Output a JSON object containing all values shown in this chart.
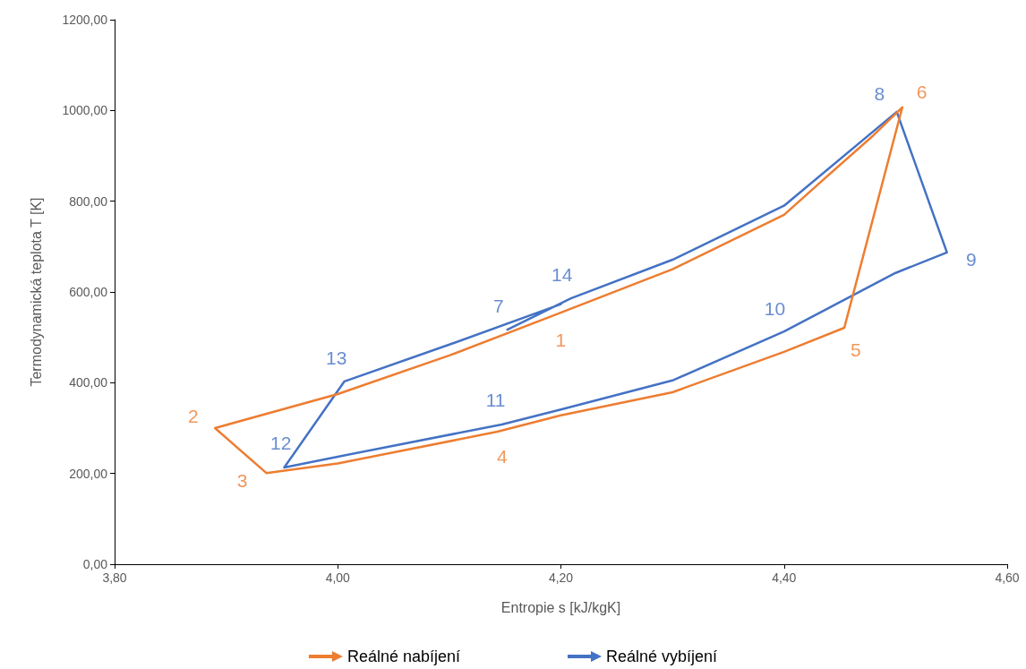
{
  "chart_data": {
    "type": "line",
    "xlabel": "Entropie s [kJ/kgK]",
    "ylabel": "Termodynamická teplota T [K]",
    "xlim": [
      3.8,
      4.6
    ],
    "xticks": [
      {
        "value": 3.8,
        "label": "3,80"
      },
      {
        "value": 4.0,
        "label": "4,00"
      },
      {
        "value": 4.2,
        "label": "4,20"
      },
      {
        "value": 4.4,
        "label": "4,40"
      },
      {
        "value": 4.6,
        "label": "4,60"
      }
    ],
    "ylim": [
      0,
      1200
    ],
    "yticks": [
      {
        "value": 0,
        "label": "0,00"
      },
      {
        "value": 200,
        "label": "200,00"
      },
      {
        "value": 400,
        "label": "400,00"
      },
      {
        "value": 600,
        "label": "600,00"
      },
      {
        "value": 800,
        "label": "800,00"
      },
      {
        "value": 1000,
        "label": "1000,00"
      },
      {
        "value": 1200,
        "label": "1200,00"
      }
    ],
    "grid": false,
    "legend": "bottom",
    "marker": "none",
    "line_style": "solid",
    "series": [
      {
        "name": "Reálné nabíjení",
        "color": "#ed7d31",
        "x": [
          4.45,
          4.4,
          4.3,
          4.19,
          4.1,
          4.0,
          3.89,
          3.936,
          4.0,
          4.143,
          4.2,
          4.3,
          4.4,
          4.454,
          4.506,
          4.48,
          4.43
        ],
        "values": [
          880,
          770,
          650,
          545,
          460,
          375,
          300,
          201,
          222,
          292,
          328,
          379,
          468,
          521,
          1007,
          945,
          836
        ]
      },
      {
        "name": "Reálné vybíjení",
        "color": "#4472c4",
        "x": [
          4.152,
          4.209,
          4.3,
          4.4,
          4.501,
          4.546,
          4.5,
          4.4,
          4.3,
          4.2,
          4.147,
          4.0,
          3.952,
          4.006,
          4.1,
          4.2
        ],
        "values": [
          517,
          586,
          671,
          790,
          997,
          687,
          642,
          513,
          405,
          341,
          308,
          237,
          213,
          403,
          484,
          573
        ]
      }
    ],
    "annotations": [
      {
        "text": "1",
        "x": 4.19,
        "y": 545
      },
      {
        "text": "2",
        "x": 3.89,
        "y": 300
      },
      {
        "text": "3",
        "x": 3.936,
        "y": 201
      },
      {
        "text": "4",
        "x": 4.143,
        "y": 292
      },
      {
        "text": "5",
        "x": 4.454,
        "y": 521
      },
      {
        "text": "6",
        "x": 4.506,
        "y": 1007
      },
      {
        "text": "7",
        "x": 4.152,
        "y": 517
      },
      {
        "text": "14",
        "x": 4.209,
        "y": 586
      },
      {
        "text": "8",
        "x": 4.501,
        "y": 997
      },
      {
        "text": "9",
        "x": 4.546,
        "y": 687
      },
      {
        "text": "10",
        "x": 4.4,
        "y": 513
      },
      {
        "text": "11",
        "x": 4.147,
        "y": 308
      },
      {
        "text": "12",
        "x": 3.952,
        "y": 213
      },
      {
        "text": "13",
        "x": 4.006,
        "y": 403
      }
    ]
  }
}
